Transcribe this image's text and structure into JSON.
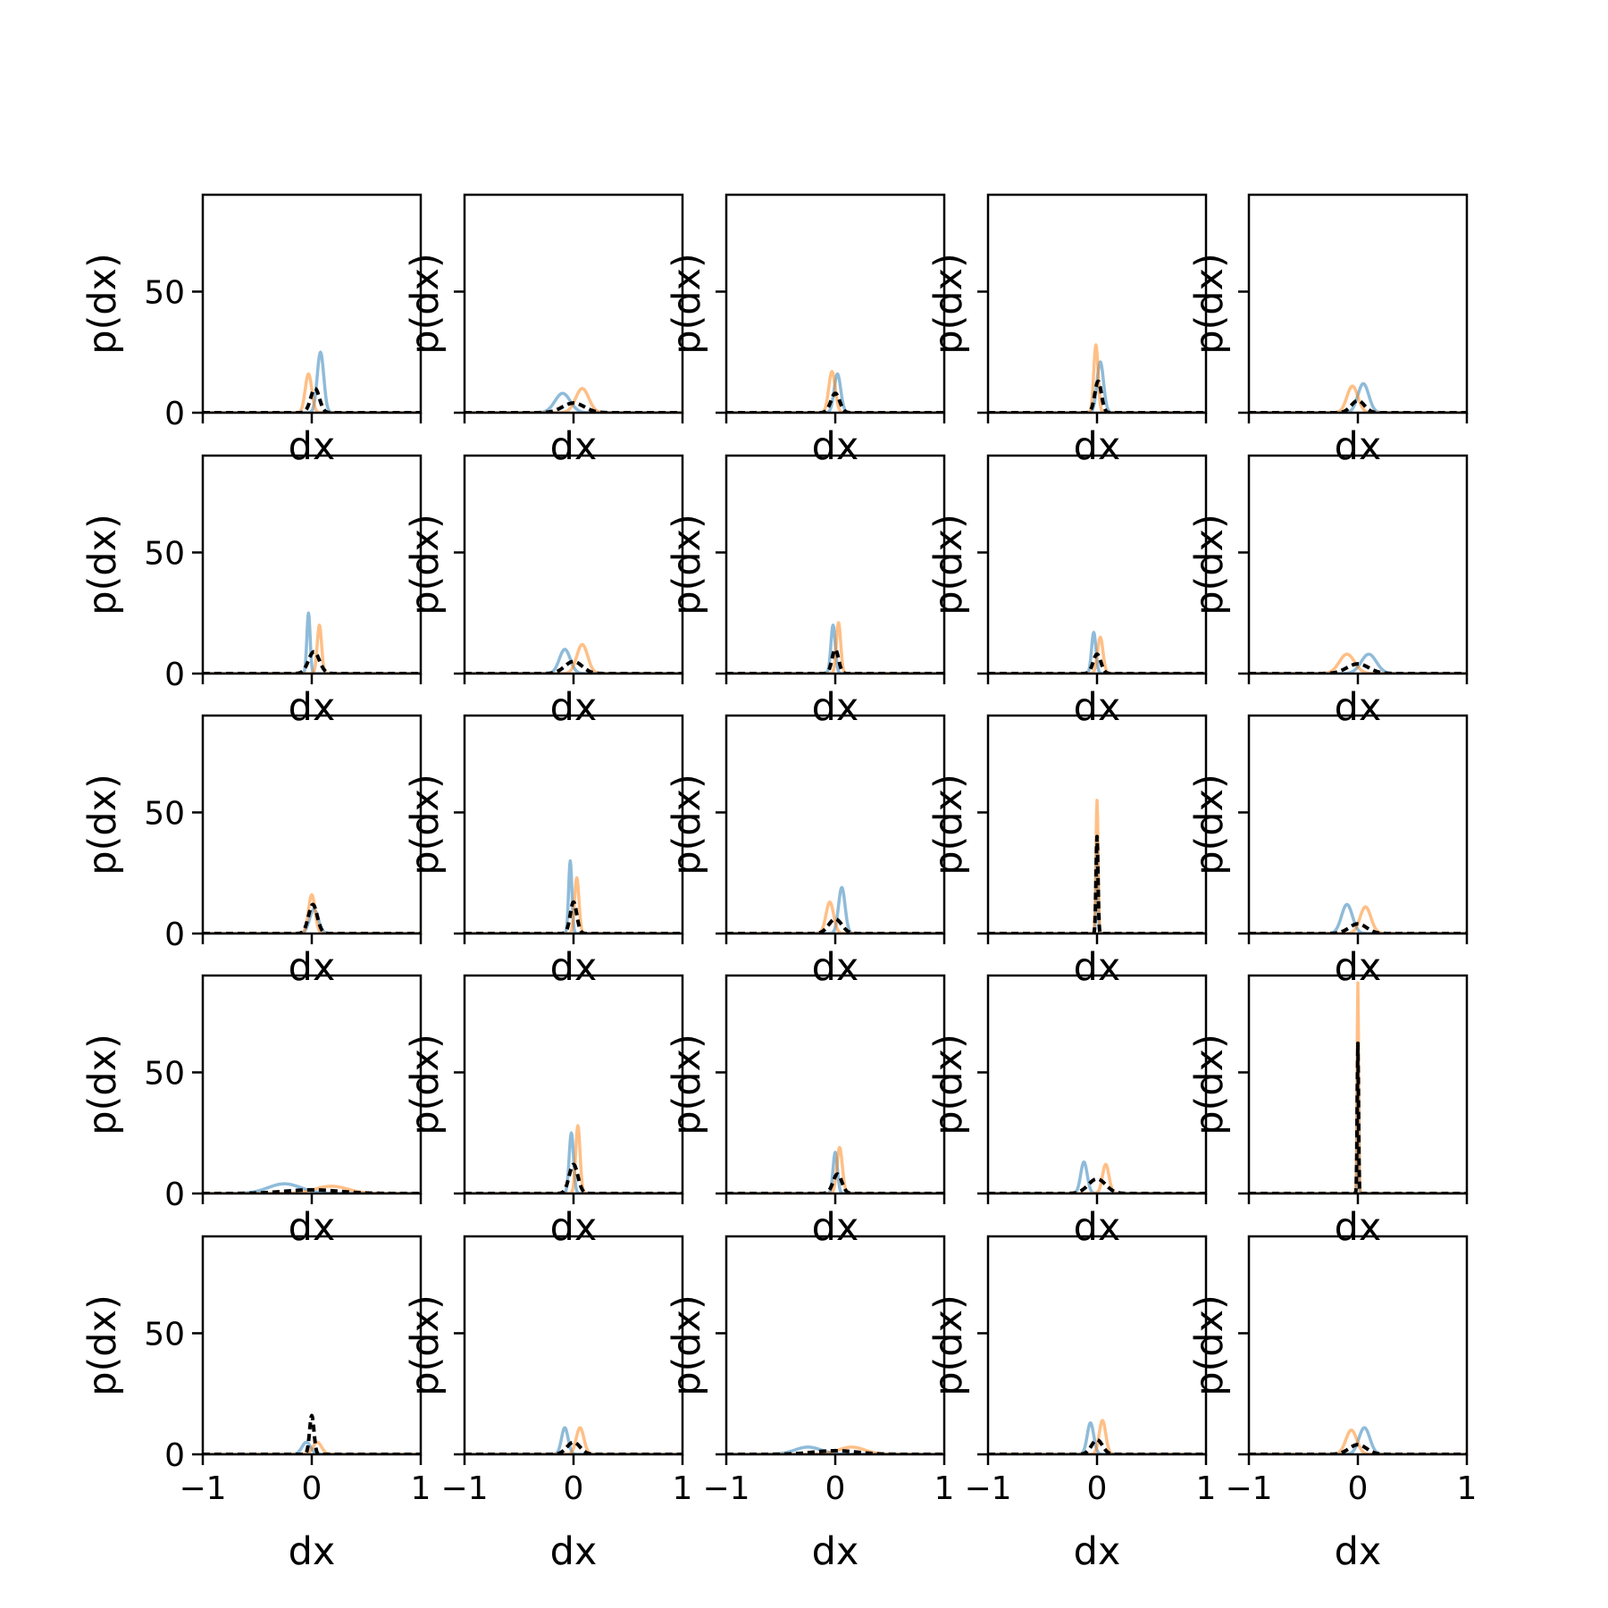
{
  "chart_data": {
    "type": "line",
    "layout": "5x5 grid of histogram line plots",
    "shared_axes": {
      "xlabel": "dx",
      "ylabel": "p(dx)",
      "xlim": [
        -1,
        1
      ],
      "ylim": [
        0,
        90
      ],
      "xticks": [
        -1,
        0,
        1
      ],
      "xtick_labels": [
        "−1",
        "0",
        "1"
      ],
      "yticks": [
        0,
        50
      ],
      "ytick_labels": [
        "0",
        "50"
      ],
      "grid": false,
      "legend": "none"
    },
    "series_styles": [
      {
        "color": "#1f77b4",
        "alpha": 0.5,
        "dash": "solid"
      },
      {
        "color": "#ff7f0e",
        "alpha": 0.5,
        "dash": "solid"
      },
      {
        "color": "#000000",
        "alpha": 1.0,
        "dash": "dashed"
      }
    ],
    "panels": [
      {
        "row": 0,
        "col": 0,
        "peaks": [
          {
            "x": 0.08,
            "w": 0.03,
            "h": 25
          },
          {
            "x": -0.03,
            "w": 0.03,
            "h": 16
          },
          {
            "x": 0.03,
            "w": 0.04,
            "h": 10
          }
        ]
      },
      {
        "row": 0,
        "col": 1,
        "peaks": [
          {
            "x": -0.1,
            "w": 0.07,
            "h": 8
          },
          {
            "x": 0.08,
            "w": 0.06,
            "h": 10
          },
          {
            "x": 0.0,
            "w": 0.1,
            "h": 4
          }
        ]
      },
      {
        "row": 0,
        "col": 2,
        "peaks": [
          {
            "x": 0.02,
            "w": 0.03,
            "h": 16
          },
          {
            "x": -0.03,
            "w": 0.03,
            "h": 17
          },
          {
            "x": 0.0,
            "w": 0.04,
            "h": 8
          }
        ]
      },
      {
        "row": 0,
        "col": 3,
        "peaks": [
          {
            "x": 0.03,
            "w": 0.03,
            "h": 21
          },
          {
            "x": -0.01,
            "w": 0.02,
            "h": 28
          },
          {
            "x": 0.01,
            "w": 0.03,
            "h": 13
          }
        ]
      },
      {
        "row": 0,
        "col": 4,
        "peaks": [
          {
            "x": 0.05,
            "w": 0.05,
            "h": 12
          },
          {
            "x": -0.05,
            "w": 0.05,
            "h": 11
          },
          {
            "x": 0.0,
            "w": 0.06,
            "h": 5
          }
        ]
      },
      {
        "row": 1,
        "col": 0,
        "peaks": [
          {
            "x": -0.03,
            "w": 0.015,
            "h": 25
          },
          {
            "x": 0.07,
            "w": 0.02,
            "h": 20
          },
          {
            "x": 0.02,
            "w": 0.05,
            "h": 9
          }
        ]
      },
      {
        "row": 1,
        "col": 1,
        "peaks": [
          {
            "x": -0.08,
            "w": 0.05,
            "h": 10
          },
          {
            "x": 0.08,
            "w": 0.05,
            "h": 12
          },
          {
            "x": 0.0,
            "w": 0.08,
            "h": 5
          }
        ]
      },
      {
        "row": 1,
        "col": 2,
        "peaks": [
          {
            "x": -0.02,
            "w": 0.02,
            "h": 20
          },
          {
            "x": 0.03,
            "w": 0.02,
            "h": 21
          },
          {
            "x": 0.0,
            "w": 0.03,
            "h": 10
          }
        ]
      },
      {
        "row": 1,
        "col": 3,
        "peaks": [
          {
            "x": -0.03,
            "w": 0.02,
            "h": 17
          },
          {
            "x": 0.03,
            "w": 0.025,
            "h": 15
          },
          {
            "x": 0.0,
            "w": 0.035,
            "h": 8
          }
        ]
      },
      {
        "row": 1,
        "col": 4,
        "peaks": [
          {
            "x": 0.1,
            "w": 0.07,
            "h": 8
          },
          {
            "x": -0.1,
            "w": 0.07,
            "h": 8
          },
          {
            "x": 0.0,
            "w": 0.1,
            "h": 4
          }
        ]
      },
      {
        "row": 2,
        "col": 0,
        "peaks": [
          {
            "x": 0.02,
            "w": 0.04,
            "h": 10
          },
          {
            "x": 0.0,
            "w": 0.03,
            "h": 16
          },
          {
            "x": 0.01,
            "w": 0.04,
            "h": 12
          }
        ]
      },
      {
        "row": 2,
        "col": 1,
        "peaks": [
          {
            "x": -0.03,
            "w": 0.015,
            "h": 30
          },
          {
            "x": 0.03,
            "w": 0.02,
            "h": 23
          },
          {
            "x": 0.0,
            "w": 0.03,
            "h": 13
          }
        ]
      },
      {
        "row": 2,
        "col": 2,
        "peaks": [
          {
            "x": 0.06,
            "w": 0.03,
            "h": 19
          },
          {
            "x": -0.05,
            "w": 0.035,
            "h": 13
          },
          {
            "x": 0.0,
            "w": 0.06,
            "h": 6
          }
        ]
      },
      {
        "row": 2,
        "col": 3,
        "peaks": [
          {
            "x": 0.0,
            "w": 0.008,
            "h": 40
          },
          {
            "x": 0.0,
            "w": 0.01,
            "h": 55
          },
          {
            "x": 0.0,
            "w": 0.009,
            "h": 40
          }
        ]
      },
      {
        "row": 2,
        "col": 4,
        "peaks": [
          {
            "x": -0.1,
            "w": 0.05,
            "h": 12
          },
          {
            "x": 0.07,
            "w": 0.05,
            "h": 11
          },
          {
            "x": 0.0,
            "w": 0.08,
            "h": 4
          }
        ]
      },
      {
        "row": 3,
        "col": 0,
        "peaks": [
          {
            "x": -0.25,
            "w": 0.15,
            "h": 4
          },
          {
            "x": 0.18,
            "w": 0.15,
            "h": 3
          },
          {
            "x": 0.0,
            "w": 0.25,
            "h": 1.5
          }
        ]
      },
      {
        "row": 3,
        "col": 1,
        "peaks": [
          {
            "x": -0.02,
            "w": 0.02,
            "h": 25
          },
          {
            "x": 0.04,
            "w": 0.02,
            "h": 28
          },
          {
            "x": 0.0,
            "w": 0.04,
            "h": 12
          }
        ]
      },
      {
        "row": 3,
        "col": 2,
        "peaks": [
          {
            "x": 0.0,
            "w": 0.02,
            "h": 17
          },
          {
            "x": 0.04,
            "w": 0.025,
            "h": 19
          },
          {
            "x": 0.02,
            "w": 0.04,
            "h": 8
          }
        ]
      },
      {
        "row": 3,
        "col": 3,
        "peaks": [
          {
            "x": -0.12,
            "w": 0.03,
            "h": 13
          },
          {
            "x": 0.08,
            "w": 0.03,
            "h": 12
          },
          {
            "x": 0.0,
            "w": 0.08,
            "h": 6
          }
        ]
      },
      {
        "row": 3,
        "col": 4,
        "peaks": [
          {
            "x": 0.0,
            "w": 0.006,
            "h": 62
          },
          {
            "x": 0.0,
            "w": 0.007,
            "h": 87
          },
          {
            "x": 0.0,
            "w": 0.006,
            "h": 62
          }
        ]
      },
      {
        "row": 4,
        "col": 0,
        "peaks": [
          {
            "x": -0.05,
            "w": 0.04,
            "h": 5
          },
          {
            "x": 0.05,
            "w": 0.04,
            "h": 5
          },
          {
            "x": 0.0,
            "w": 0.02,
            "h": 16
          }
        ]
      },
      {
        "row": 4,
        "col": 1,
        "peaks": [
          {
            "x": -0.08,
            "w": 0.03,
            "h": 11
          },
          {
            "x": 0.06,
            "w": 0.035,
            "h": 11
          },
          {
            "x": 0.0,
            "w": 0.06,
            "h": 5
          }
        ]
      },
      {
        "row": 4,
        "col": 2,
        "peaks": [
          {
            "x": -0.25,
            "w": 0.12,
            "h": 3
          },
          {
            "x": 0.15,
            "w": 0.12,
            "h": 3
          },
          {
            "x": 0.0,
            "w": 0.2,
            "h": 1.5
          }
        ]
      },
      {
        "row": 4,
        "col": 3,
        "peaks": [
          {
            "x": -0.06,
            "w": 0.03,
            "h": 13
          },
          {
            "x": 0.05,
            "w": 0.03,
            "h": 14
          },
          {
            "x": 0.0,
            "w": 0.05,
            "h": 6
          }
        ]
      },
      {
        "row": 4,
        "col": 4,
        "peaks": [
          {
            "x": 0.06,
            "w": 0.05,
            "h": 11
          },
          {
            "x": -0.06,
            "w": 0.05,
            "h": 10
          },
          {
            "x": 0.0,
            "w": 0.08,
            "h": 4
          }
        ]
      }
    ]
  }
}
